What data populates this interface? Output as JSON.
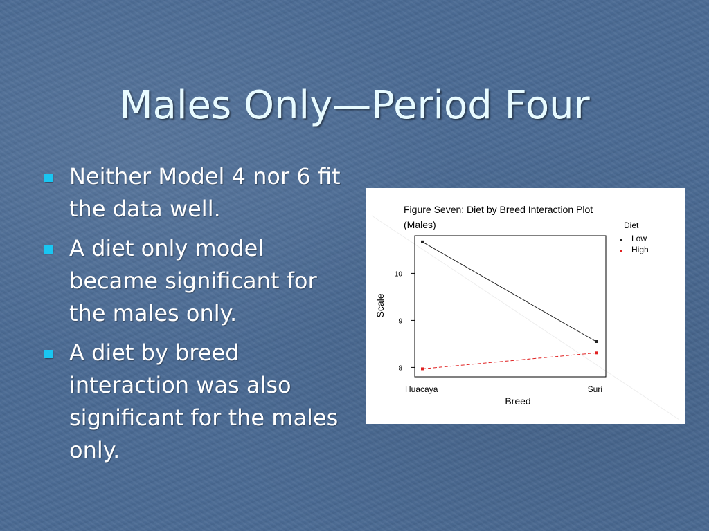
{
  "slide": {
    "title": "Males Only—Period Four",
    "bullets": [
      "Neither Model 4 nor 6 fit the data well.",
      "A diet only model became significant for the males only.",
      "A diet by breed interaction was also significant for the males only."
    ],
    "bullet_color": "#19c6f2"
  },
  "chart_data": {
    "type": "line",
    "title_line1": "Figure Seven:  Diet by Breed Interaction Plot",
    "title_line2": "(Males)",
    "xlabel": "Breed",
    "ylabel": "Scale",
    "categories": [
      "Huacaya",
      "Suri"
    ],
    "yticks": [
      "8",
      "9",
      "10"
    ],
    "ylim": [
      7.8,
      10.8
    ],
    "legend_title": "Diet",
    "legend_position": "top-right",
    "series": [
      {
        "name": "Low",
        "values": [
          10.67,
          8.55
        ],
        "color": "#222222",
        "style": "solid"
      },
      {
        "name": "High",
        "values": [
          7.97,
          8.31
        ],
        "color": "#e02020",
        "style": "dashed"
      }
    ]
  }
}
